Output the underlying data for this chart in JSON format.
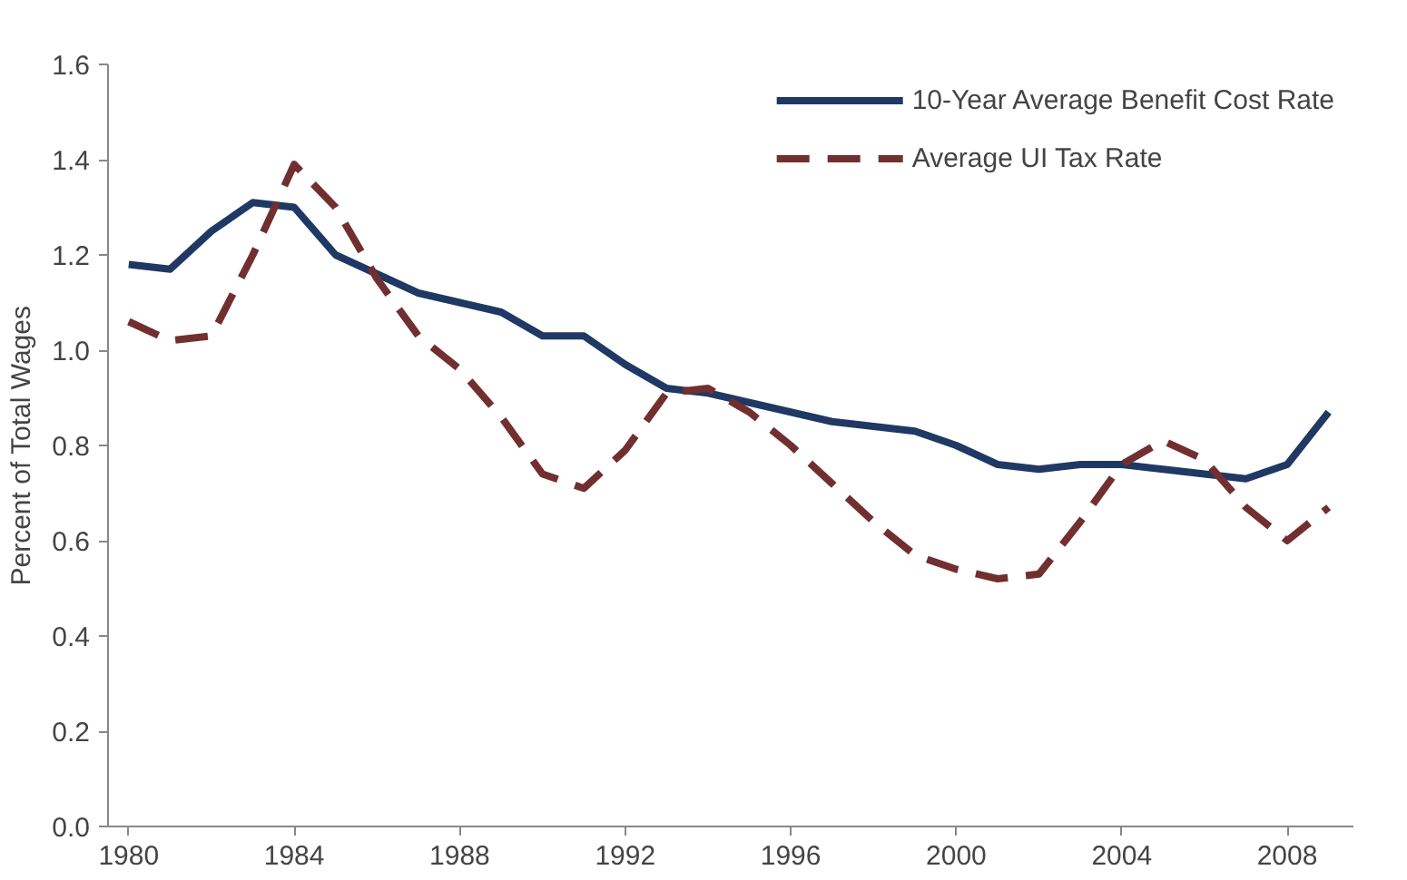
{
  "chart_data": {
    "type": "line",
    "ylabel": "Percent of Total Wages",
    "x": [
      1980,
      1981,
      1982,
      1983,
      1984,
      1985,
      1986,
      1987,
      1988,
      1989,
      1990,
      1991,
      1992,
      1993,
      1994,
      1995,
      1996,
      1997,
      1998,
      1999,
      2000,
      2001,
      2002,
      2003,
      2004,
      2005,
      2006,
      2007,
      2008,
      2009
    ],
    "xlim": [
      1979.5,
      2009.6
    ],
    "xticks": [
      1980,
      1984,
      1988,
      1992,
      1996,
      2000,
      2004,
      2008
    ],
    "ylim": [
      0,
      1.6
    ],
    "yticks": [
      {
        "value": 0,
        "label": "0.0"
      },
      {
        "value": 0.2,
        "label": "0.2"
      },
      {
        "value": 0.4,
        "label": "0.4"
      },
      {
        "value": 0.6,
        "label": "0.6"
      },
      {
        "value": 0.8,
        "label": "0.8"
      },
      {
        "value": 1.0,
        "label": "1.0"
      },
      {
        "value": 1.2,
        "label": "1.2"
      },
      {
        "value": 1.4,
        "label": "1.4"
      },
      {
        "value": 1.6,
        "label": "1.6"
      }
    ],
    "series": [
      {
        "name": "10-Year Average Benefit Cost Rate",
        "color": "#1f3864",
        "line_style": "solid",
        "values": [
          1.18,
          1.17,
          1.25,
          1.31,
          1.3,
          1.2,
          1.16,
          1.12,
          1.1,
          1.08,
          1.03,
          1.03,
          0.97,
          0.92,
          0.91,
          0.89,
          0.87,
          0.85,
          0.84,
          0.83,
          0.8,
          0.76,
          0.75,
          0.76,
          0.76,
          0.75,
          0.74,
          0.73,
          0.76,
          0.87
        ]
      },
      {
        "name": "Average UI Tax Rate",
        "color": "#722f2f",
        "line_style": "dashed",
        "values": [
          1.06,
          1.02,
          1.03,
          1.2,
          1.39,
          1.3,
          1.15,
          1.03,
          0.96,
          0.86,
          0.74,
          0.71,
          0.79,
          0.91,
          0.92,
          0.87,
          0.8,
          0.72,
          0.64,
          0.57,
          0.54,
          0.52,
          0.53,
          0.64,
          0.76,
          0.81,
          0.77,
          0.67,
          0.6,
          0.67
        ]
      }
    ],
    "grid": false,
    "legend": "top right",
    "marker": "none"
  }
}
